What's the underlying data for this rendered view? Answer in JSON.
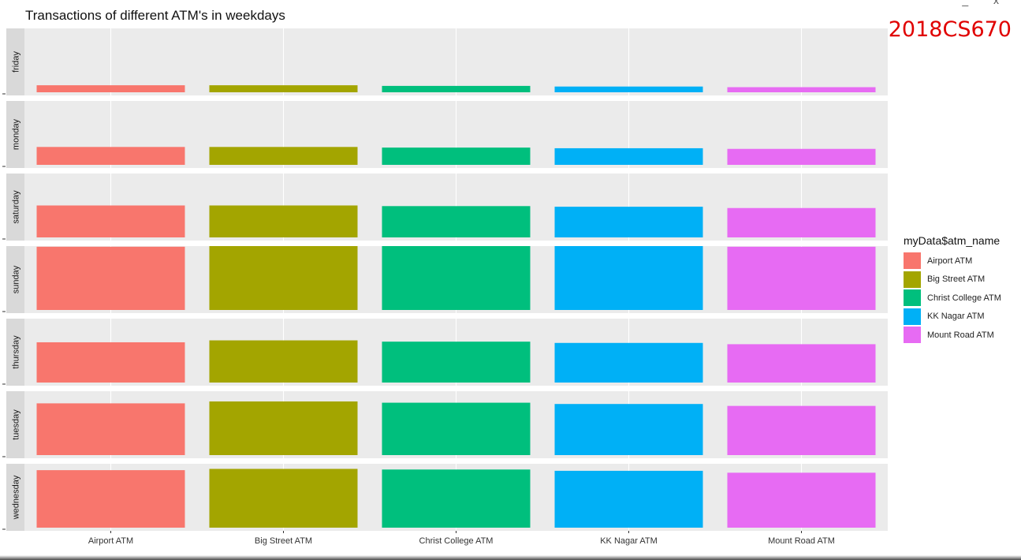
{
  "chart_data": {
    "type": "bar",
    "title": "Transactions of different ATM's in weekdays",
    "xlabel": "",
    "ylabel": "",
    "facet_by": "weekday",
    "facets": [
      "friday",
      "monday",
      "saturday",
      "sunday",
      "thursday",
      "tuesday",
      "wednesday"
    ],
    "categories": [
      "Airport ATM",
      "Big Street ATM",
      "Christ College ATM",
      "KK Nagar ATM",
      "Mount Road ATM"
    ],
    "values": [
      [
        11,
        11,
        10,
        9,
        8
      ],
      [
        28,
        28,
        27,
        26,
        25
      ],
      [
        50,
        50,
        49,
        48,
        46
      ],
      [
        99,
        100,
        100,
        100,
        99
      ],
      [
        63,
        66,
        64,
        62,
        60
      ],
      [
        81,
        84,
        82,
        80,
        77
      ],
      [
        90,
        92,
        91,
        89,
        86
      ]
    ],
    "legend": {
      "title": "myData$atm_name",
      "position": "right",
      "items": [
        "Airport ATM",
        "Big Street ATM",
        "Christ College ATM",
        "KK Nagar ATM",
        "Mount Road ATM"
      ]
    },
    "colors": [
      "#F8766D",
      "#A3A500",
      "#00BF7D",
      "#00B0F6",
      "#E76BF3"
    ],
    "grid": true
  },
  "watermark": "2018CS670",
  "window_controls": "_ x"
}
